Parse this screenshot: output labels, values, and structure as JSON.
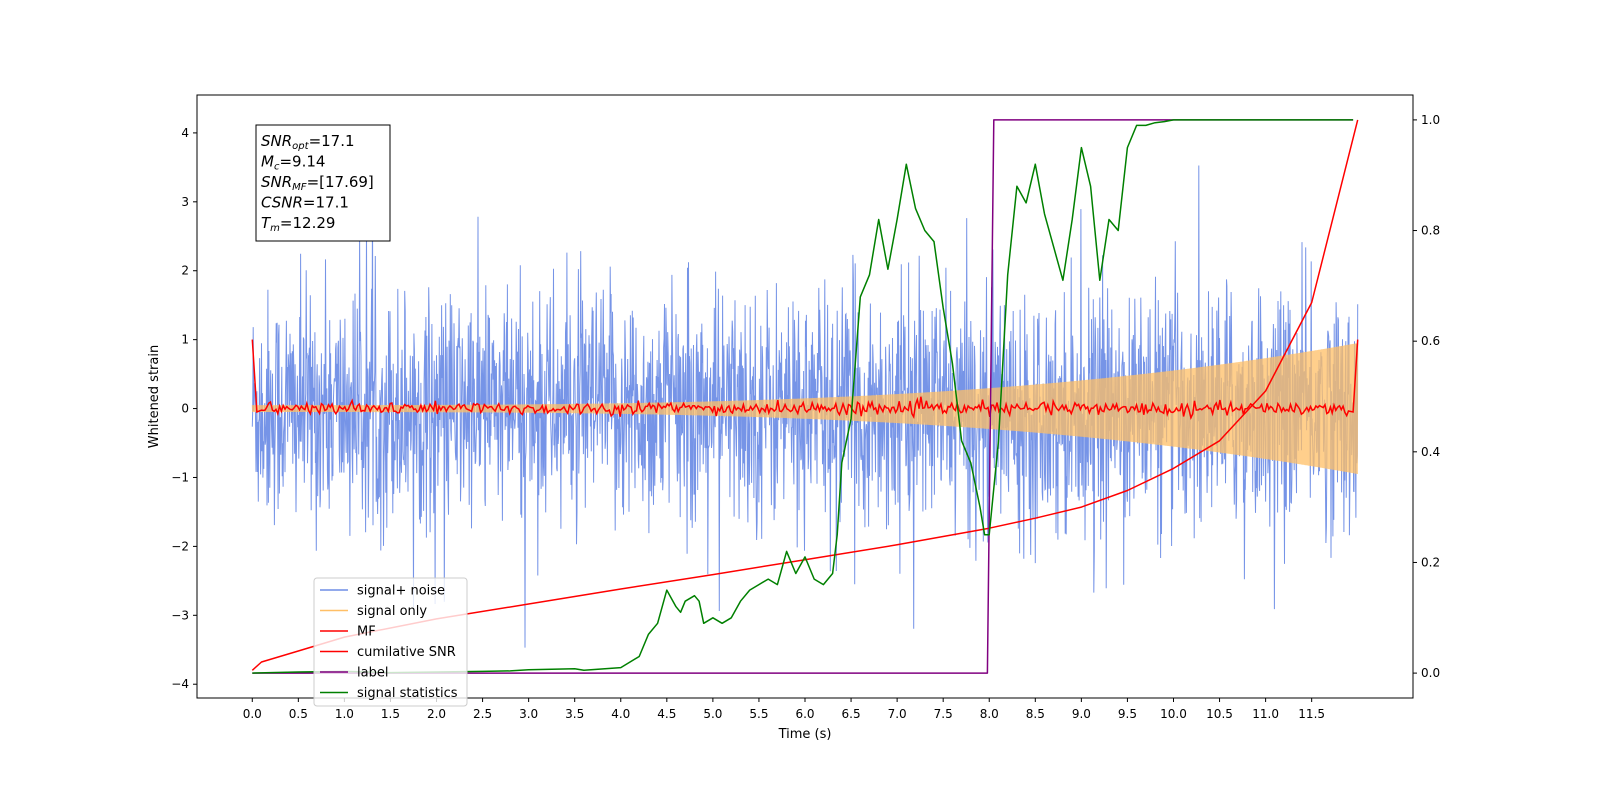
{
  "chart_data": {
    "type": "line",
    "title": "",
    "xlabel": "Time (s)",
    "ylabel": "Whitened strain",
    "ylabel_right": "",
    "xlim": [
      -0.6,
      12.6
    ],
    "ylim": [
      -4.2,
      4.55
    ],
    "ylim_right": [
      -0.045,
      1.045
    ],
    "x_ticks": [
      0.0,
      0.5,
      1.0,
      1.5,
      2.0,
      2.5,
      3.0,
      3.5,
      4.0,
      4.5,
      5.0,
      5.5,
      6.0,
      6.5,
      7.0,
      7.5,
      8.0,
      8.5,
      9.0,
      9.5,
      10.0,
      10.5,
      11.0,
      11.5
    ],
    "x_tick_labels": [
      "0.0",
      "0.5",
      "1.0",
      "1.5",
      "2.0",
      "2.5",
      "3.0",
      "3.5",
      "4.0",
      "4.5",
      "5.0",
      "5.5",
      "6.0",
      "6.5",
      "7.0",
      "7.5",
      "8.0",
      "8.5",
      "9.0",
      "9.5",
      "10.0",
      "10.5",
      "11.0",
      "11.5"
    ],
    "y_ticks": [
      -4,
      -3,
      -2,
      -1,
      0,
      1,
      2,
      3,
      4
    ],
    "y_tick_labels": [
      "−4",
      "−3",
      "−2",
      "−1",
      "0",
      "1",
      "2",
      "3",
      "4"
    ],
    "y_right_ticks": [
      0.0,
      0.2,
      0.4,
      0.6,
      0.8,
      1.0
    ],
    "y_right_tick_labels": [
      "0.0",
      "0.2",
      "0.4",
      "0.6",
      "0.8",
      "1.0"
    ],
    "grid": false,
    "legend_position": "bottom-left",
    "annotation_box": [
      {
        "base": "SNR",
        "sub": "opt",
        "value": "=17.1"
      },
      {
        "base": "M",
        "sub": "c",
        "value": "=9.14"
      },
      {
        "base": "SNR",
        "sub": "MF",
        "value": "=[17.69]"
      },
      {
        "base": "CSNR",
        "sub": "",
        "value": "=17.1"
      },
      {
        "base": "T",
        "sub": "m",
        "value": "=12.29"
      }
    ],
    "series": [
      {
        "name": "signal+ noise",
        "axis": "left",
        "color": "#6f8ee6",
        "kind": "noise",
        "noise_std": 0.85,
        "x_range": [
          0.0,
          12.0
        ]
      },
      {
        "name": "signal only",
        "axis": "left",
        "color": "#ffbf66",
        "kind": "chirp",
        "amplitude_start": 0.05,
        "amplitude_end": 0.95,
        "x_range": [
          0.0,
          12.0
        ]
      },
      {
        "name": "MF",
        "axis": "left",
        "color": "#ff0000",
        "kind": "matched_filter",
        "x": [
          0.0,
          0.05,
          0.1,
          11.9,
          11.95,
          12.0
        ],
        "y": [
          1.0,
          -0.05,
          0.0,
          0.0,
          -0.05,
          1.0
        ]
      },
      {
        "name": "cumilative SNR",
        "axis": "right",
        "color": "#ff0000",
        "x": [
          0.0,
          0.1,
          0.5,
          1,
          2,
          3,
          4,
          5,
          6,
          7,
          8,
          8.5,
          9,
          9.5,
          10,
          10.5,
          11,
          11.5,
          12
        ],
        "y": [
          0.005,
          0.02,
          0.04,
          0.065,
          0.098,
          0.125,
          0.152,
          0.178,
          0.205,
          0.232,
          0.262,
          0.28,
          0.3,
          0.33,
          0.37,
          0.42,
          0.51,
          0.67,
          1.0
        ]
      },
      {
        "name": "label",
        "axis": "right",
        "color": "#800080",
        "x": [
          0.0,
          7.98,
          8.05,
          11.95
        ],
        "y": [
          0.0,
          0.0,
          1.0,
          1.0
        ]
      },
      {
        "name": "signal statistics",
        "axis": "right",
        "color": "#008000",
        "x": [
          0,
          0.5,
          1,
          1.5,
          2,
          2.5,
          2.8,
          3.0,
          3.5,
          3.6,
          4.0,
          4.2,
          4.3,
          4.4,
          4.5,
          4.6,
          4.65,
          4.7,
          4.8,
          4.85,
          4.9,
          5.0,
          5.1,
          5.2,
          5.3,
          5.4,
          5.5,
          5.6,
          5.7,
          5.8,
          5.9,
          6.0,
          6.1,
          6.2,
          6.3,
          6.35,
          6.4,
          6.5,
          6.55,
          6.6,
          6.7,
          6.8,
          6.9,
          7.0,
          7.1,
          7.2,
          7.3,
          7.4,
          7.5,
          7.6,
          7.7,
          7.8,
          7.9,
          7.95,
          8.0,
          8.1,
          8.2,
          8.3,
          8.4,
          8.5,
          8.6,
          8.7,
          8.8,
          8.9,
          9.0,
          9.1,
          9.2,
          9.3,
          9.4,
          9.5,
          9.6,
          9.7,
          9.8,
          9.9,
          10.0,
          10.5,
          11.0,
          11.5,
          11.95
        ],
        "y": [
          0.0,
          0.002,
          0.003,
          0.001,
          0.002,
          0.003,
          0.004,
          0.006,
          0.008,
          0.005,
          0.01,
          0.03,
          0.07,
          0.09,
          0.15,
          0.12,
          0.11,
          0.13,
          0.14,
          0.13,
          0.09,
          0.1,
          0.09,
          0.1,
          0.13,
          0.15,
          0.16,
          0.17,
          0.16,
          0.22,
          0.18,
          0.21,
          0.17,
          0.16,
          0.18,
          0.25,
          0.38,
          0.46,
          0.57,
          0.68,
          0.72,
          0.82,
          0.73,
          0.82,
          0.92,
          0.84,
          0.8,
          0.78,
          0.66,
          0.56,
          0.42,
          0.38,
          0.3,
          0.25,
          0.25,
          0.42,
          0.72,
          0.88,
          0.85,
          0.92,
          0.83,
          0.77,
          0.71,
          0.82,
          0.95,
          0.88,
          0.71,
          0.82,
          0.8,
          0.95,
          0.99,
          0.99,
          0.995,
          0.997,
          1.0,
          1.0,
          1.0,
          1.0,
          1.0
        ]
      }
    ]
  }
}
